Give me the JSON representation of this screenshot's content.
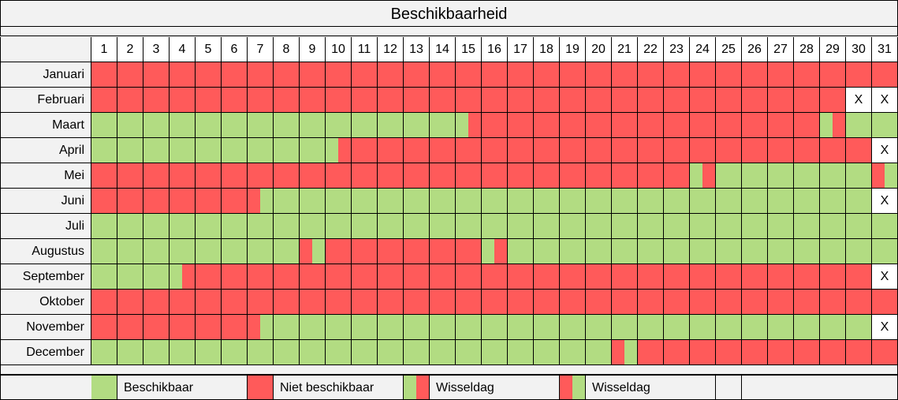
{
  "title": "Beschikbaarheid",
  "days": [
    "1",
    "2",
    "3",
    "4",
    "5",
    "6",
    "7",
    "8",
    "9",
    "10",
    "11",
    "12",
    "13",
    "14",
    "15",
    "16",
    "17",
    "18",
    "19",
    "20",
    "21",
    "22",
    "23",
    "24",
    "25",
    "26",
    "27",
    "28",
    "29",
    "30",
    "31"
  ],
  "months": [
    {
      "name": "Januari",
      "cells": "RRRRRRRRRRRRRRRRRRRRRRRRRRRRRRR"
    },
    {
      "name": "Februari",
      "cells": "RRRRRRRRRRRRRRRRRRRRRRRRRRRRRXX"
    },
    {
      "name": "Maart",
      "cells": "GGGGGGGGGGGGGGSRRRRRRRRRRRRRSGG"
    },
    {
      "name": "April",
      "cells": "GGGGGGGGGSRRRRRRRRRRRRRRRRRRRRX"
    },
    {
      "name": "Mei",
      "cells": "RRRRRRRRRRRRRRRRRRRRRRRSGGGGGGW"
    },
    {
      "name": "Juni",
      "cells": "RRRRRRWGGGGGGGGGGGGGGGGGGGGGGGX"
    },
    {
      "name": "Juli",
      "cells": "GGGGGGGGGGGGGGGGGGGGGGGGGGGGGGG"
    },
    {
      "name": "Augustus",
      "cells": "GGGGGGGGWRRRRRRSGGGGGGGGGGGGGGG"
    },
    {
      "name": "September",
      "cells": "GGGSRRRRRRRRRRRRRRRRRRRRRRRRRRX"
    },
    {
      "name": "Oktober",
      "cells": "RRRRRRRRRRRRRRRRRRRRRRRRRRRRRRR"
    },
    {
      "name": "November",
      "cells": "RRRRRRWGGGGGGGGGGGGGGGGGGGGGGGX"
    },
    {
      "name": "December",
      "cells": "GGGGGGGGGGGGGGGGGGGGWRRRRRRRRRR"
    }
  ],
  "cell_legend": {
    "G": "beschikbaar",
    "R": "niet beschikbaar",
    "S": "wisseldag groen-rood",
    "W": "wisseldag rood-groen",
    "X": "geen dag"
  },
  "x_mark": "X",
  "colors": {
    "available": "#b2dc82",
    "unavailable": "#ff5a5a",
    "none": "#ffffff"
  },
  "legend": {
    "available_label": "Beschikbaar",
    "unavailable_label": "Niet beschikbaar",
    "switch1_label": "Wisseldag",
    "switch2_label": "Wisseldag"
  }
}
